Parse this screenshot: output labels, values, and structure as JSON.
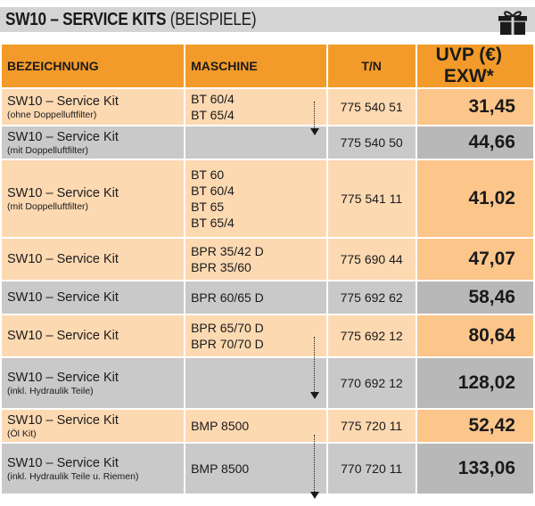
{
  "title": {
    "strong": "SW10 – SERVICE KITS",
    "light": "(BEISPIELE)"
  },
  "headers": {
    "bezeichnung": "BEZEICHNUNG",
    "maschine": "MASCHINE",
    "tn": "T/N",
    "price": "UVP (€) EXW*"
  },
  "rows": [
    {
      "name": "SW10 – Service Kit",
      "sub": "(ohne Doppelluftfilter)",
      "machines": [
        "BT 60/4",
        "BT 65/4"
      ],
      "tn": "775 540 51",
      "price": "31,45",
      "tone": "orange"
    },
    {
      "name": "SW10 – Service Kit",
      "sub": "(mit Doppelluftfilter)",
      "machines": [],
      "tn": "775 540 50",
      "price": "44,66",
      "tone": "gray"
    },
    {
      "name": "SW10 – Service Kit",
      "sub": "(mit Doppelluftfilter)",
      "machines": [
        "BT 60",
        "BT 60/4",
        "BT 65",
        "BT 65/4"
      ],
      "tn": "775 541 11",
      "price": "41,02",
      "tone": "orange"
    },
    {
      "name": "SW10 – Service Kit",
      "sub": "",
      "machines": [
        "BPR 35/42 D",
        "BPR 35/60"
      ],
      "tn": "775 690 44",
      "price": "47,07",
      "tone": "orange"
    },
    {
      "name": "SW10 – Service Kit",
      "sub": "",
      "machines": [
        "BPR 60/65 D"
      ],
      "tn": "775 692 62",
      "price": "58,46",
      "tone": "gray"
    },
    {
      "name": "SW10 – Service Kit",
      "sub": "",
      "machines": [
        "BPR 65/70 D",
        "BPR 70/70 D"
      ],
      "tn": "775 692 12",
      "price": "80,64",
      "tone": "orange"
    },
    {
      "name": "SW10 – Service Kit",
      "sub": "(inkl. Hydraulik Teile)",
      "machines": [],
      "tn": "770 692 12",
      "price": "128,02",
      "tone": "gray"
    },
    {
      "name": "SW10 – Service Kit",
      "sub": "(Öl Kit)",
      "machines": [
        "BMP 8500"
      ],
      "tn": "775 720 11",
      "price": "52,42",
      "tone": "orange"
    },
    {
      "name": "SW10 – Service Kit",
      "sub": "(inkl. Hydraulik Teile u. Riemen)",
      "machines": [
        "BMP 8500"
      ],
      "tn": "770 720 11",
      "price": "133,06",
      "tone": "gray"
    }
  ],
  "icons": {
    "gift": "gift-icon",
    "arrow": "dotted-down-arrow-icon"
  }
}
